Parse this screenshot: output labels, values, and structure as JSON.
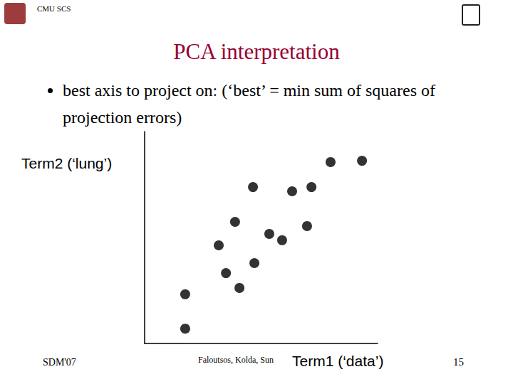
{
  "slide": {
    "header": "CMU SCS",
    "title": "PCA interpretation",
    "bullets": [
      "best axis to project on: (‘best’ = min sum of squares of projection errors)"
    ],
    "footer": {
      "left": "SDM'07",
      "center": "Faloutsos, Kolda, Sun",
      "page": 15
    }
  },
  "chart_data": {
    "type": "scatter",
    "x_label": "Term1 (‘data’)",
    "y_label": "Term2 (‘lung’)",
    "x": [
      17.4,
      17.4,
      31.8,
      34.9,
      38.8,
      40.7,
      46.5,
      47.1,
      53.5,
      59.0,
      63.3,
      69.7,
      71.6,
      79.8,
      93.3
    ],
    "values": [
      7.0,
      23.2,
      46.3,
      33.2,
      57.4,
      26.2,
      73.8,
      37.9,
      51.7,
      48.7,
      71.8,
      55.4,
      73.8,
      85.6,
      86.2
    ],
    "color": "#000000",
    "marker": "circle",
    "xlim": [
      0,
      100
    ],
    "ylim": [
      0,
      100
    ],
    "tick_labels": false,
    "grid": false
  }
}
